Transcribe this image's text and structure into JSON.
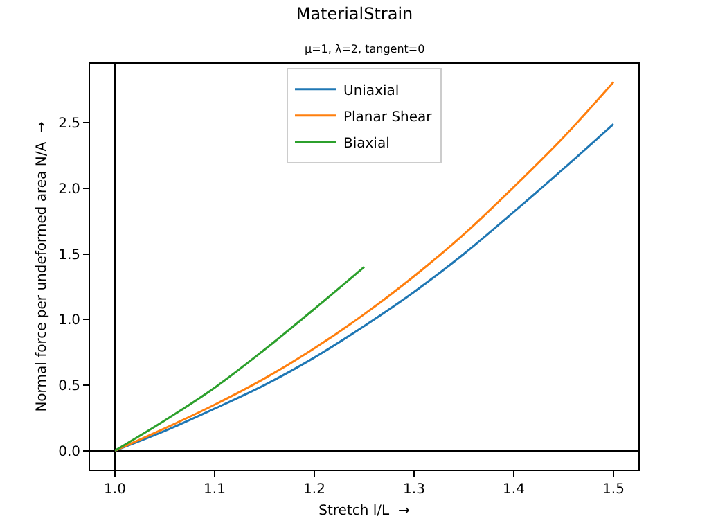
{
  "chart_data": {
    "type": "line",
    "title": "MaterialStrain",
    "subtitle": "μ=1, λ=2, tangent=0",
    "xlabel": "Stretch l/L  →",
    "ylabel": "Normal force per undeformed area N/A  →",
    "x": [
      1.0,
      1.05,
      1.1,
      1.15,
      1.2,
      1.25,
      1.3,
      1.35,
      1.4,
      1.45,
      1.5
    ],
    "series": [
      {
        "name": "Uniaxial",
        "color": "#1f77b4",
        "values": [
          0,
          0.15,
          0.32,
          0.5,
          0.71,
          0.95,
          1.21,
          1.5,
          1.82,
          2.15,
          2.49
        ]
      },
      {
        "name": "Planar Shear",
        "color": "#ff7f0e",
        "values": [
          0,
          0.17,
          0.35,
          0.55,
          0.78,
          1.04,
          1.33,
          1.65,
          2.01,
          2.39,
          2.81
        ]
      },
      {
        "name": "Biaxial",
        "color": "#2ca02c",
        "x": [
          1.0,
          1.05,
          1.1,
          1.15,
          1.2,
          1.25
        ],
        "values": [
          0,
          0.23,
          0.48,
          0.77,
          1.08,
          1.4
        ]
      }
    ],
    "xlim": [
      0.975,
      1.525
    ],
    "xticks": [
      {
        "value": 1.0,
        "label": "1.0"
      },
      1.1,
      1.2,
      1.3,
      1.4,
      1.5
    ],
    "ylim": [
      -0.145,
      2.95
    ],
    "yticks": [
      {
        "value": 0,
        "label": "0.0"
      },
      0.5,
      {
        "value": 1,
        "label": "1.0"
      },
      1.5,
      {
        "value": 2,
        "label": "2.0"
      },
      2.5
    ],
    "ref_lines": [
      {
        "axis": "x",
        "value": 1.0,
        "color": "#000000"
      },
      {
        "axis": "y",
        "value": 0,
        "color": "#000000"
      }
    ],
    "legend": "top",
    "grid": false,
    "marker": "none",
    "line_style": "solid"
  }
}
